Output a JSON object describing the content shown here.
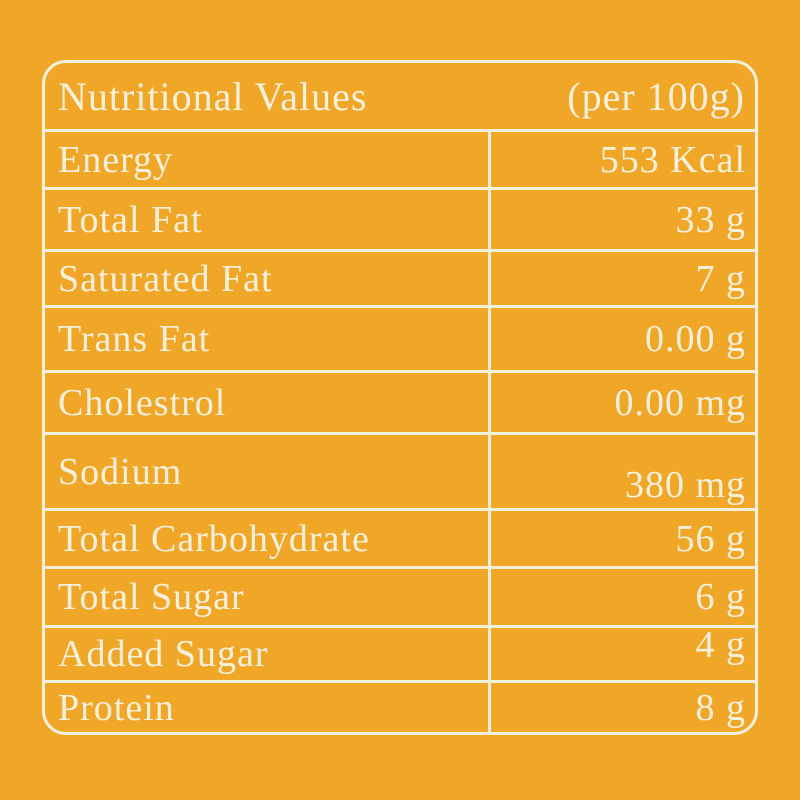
{
  "colors": {
    "background": "#F0A627",
    "foreground": "#F5F0DC"
  },
  "table": {
    "header": {
      "title": "Nutritional Values",
      "unit_note": "(per 100g)"
    },
    "rows": [
      {
        "label": "Energy",
        "value": "553 Kcal"
      },
      {
        "label": "Total Fat",
        "value": "33 g"
      },
      {
        "label": "Saturated Fat",
        "value": "7 g"
      },
      {
        "label": "Trans Fat",
        "value": "0.00 g"
      },
      {
        "label": "Cholestrol",
        "value": "0.00 mg"
      },
      {
        "label": "Sodium",
        "value": "380 mg"
      },
      {
        "label": "Total Carbohydrate",
        "value": "56 g"
      },
      {
        "label": "Total Sugar",
        "value": "6 g"
      },
      {
        "label": "Added Sugar",
        "value": "4 g"
      },
      {
        "label": "Protein",
        "value": "8 g"
      }
    ]
  }
}
